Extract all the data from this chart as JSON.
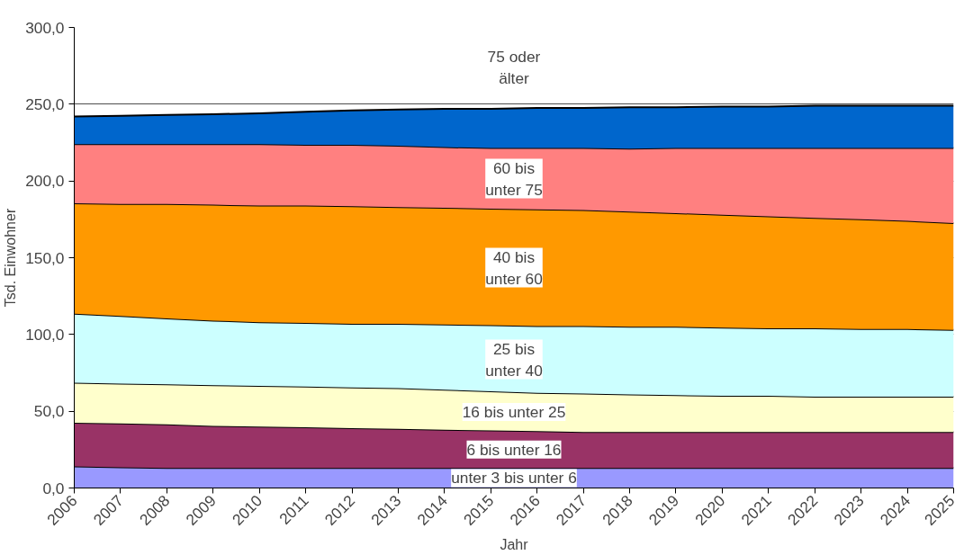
{
  "chart_data": {
    "type": "area",
    "stacked": true,
    "xlabel": "Jahr",
    "ylabel": "Tsd. Einwohner",
    "categories": [
      "2006",
      "2007",
      "2008",
      "2009",
      "2010",
      "2011",
      "2012",
      "2013",
      "2014",
      "2015",
      "2016",
      "2017",
      "2018",
      "2019",
      "2020",
      "2021",
      "2022",
      "2023",
      "2024",
      "2025"
    ],
    "ylim": [
      0,
      300
    ],
    "yticks": [
      {
        "value": 0,
        "label": "0,0"
      },
      {
        "value": 50,
        "label": "50,0"
      },
      {
        "value": 100,
        "label": "100,0"
      },
      {
        "value": 150,
        "label": "150,0"
      },
      {
        "value": 200,
        "label": "200,0"
      },
      {
        "value": 250,
        "label": "250,0"
      },
      {
        "value": 300,
        "label": "300,0"
      }
    ],
    "grid": "y",
    "series": [
      {
        "name": "unter 3 bis unter 6",
        "color": "#9999ff",
        "values": [
          14,
          13.5,
          13,
          13,
          13,
          13,
          13,
          13,
          13,
          13,
          13,
          13,
          13,
          13,
          13,
          13,
          13,
          13,
          13,
          13
        ]
      },
      {
        "name": "6 bis unter 16",
        "color": "#993366",
        "values": [
          28.5,
          28.5,
          28.5,
          27.5,
          27,
          26.5,
          26,
          25.5,
          25,
          24.5,
          24,
          23.5,
          23.5,
          23.5,
          23.5,
          23.5,
          23.5,
          23.5,
          23.5,
          23.5
        ]
      },
      {
        "name": "16 bis unter 25",
        "color": "#ffffcc",
        "values": [
          26,
          26,
          26,
          26.5,
          26.5,
          26.5,
          26.5,
          26.5,
          26,
          25.5,
          25,
          25,
          24.5,
          24,
          23.5,
          23.5,
          23,
          23,
          23,
          23
        ]
      },
      {
        "name": "25 bis\nunter 40",
        "color": "#ccffff",
        "values": [
          45,
          44,
          43,
          42,
          41.5,
          41.5,
          41.5,
          42,
          42.5,
          43,
          43.5,
          44,
          44,
          44.5,
          44.5,
          44,
          44.5,
          44,
          44,
          43.5
        ]
      },
      {
        "name": "40 bis\nunter 60",
        "color": "#ff9900",
        "values": [
          72,
          73,
          74.5,
          75.5,
          76,
          76.5,
          76.5,
          76,
          76,
          76,
          76,
          75.5,
          75,
          74,
          73.5,
          73,
          72,
          71.5,
          70.5,
          69.5
        ]
      },
      {
        "name": "60 bis\nunter 75",
        "color": "#ff8080",
        "values": [
          38.5,
          39,
          39,
          39.5,
          40,
          39.5,
          40,
          40,
          39.5,
          39.5,
          40,
          40.5,
          41,
          42.5,
          43.5,
          44.5,
          45.5,
          46.5,
          47.5,
          49
        ]
      },
      {
        "name": "75 oder\nälter",
        "color": "#0066cc",
        "values": [
          18,
          18.5,
          19,
          19.5,
          20,
          21.5,
          22.5,
          23.5,
          25,
          25.5,
          26,
          26,
          27,
          26.5,
          27,
          27,
          27.5,
          27.5,
          27.5,
          27.5
        ]
      }
    ]
  }
}
